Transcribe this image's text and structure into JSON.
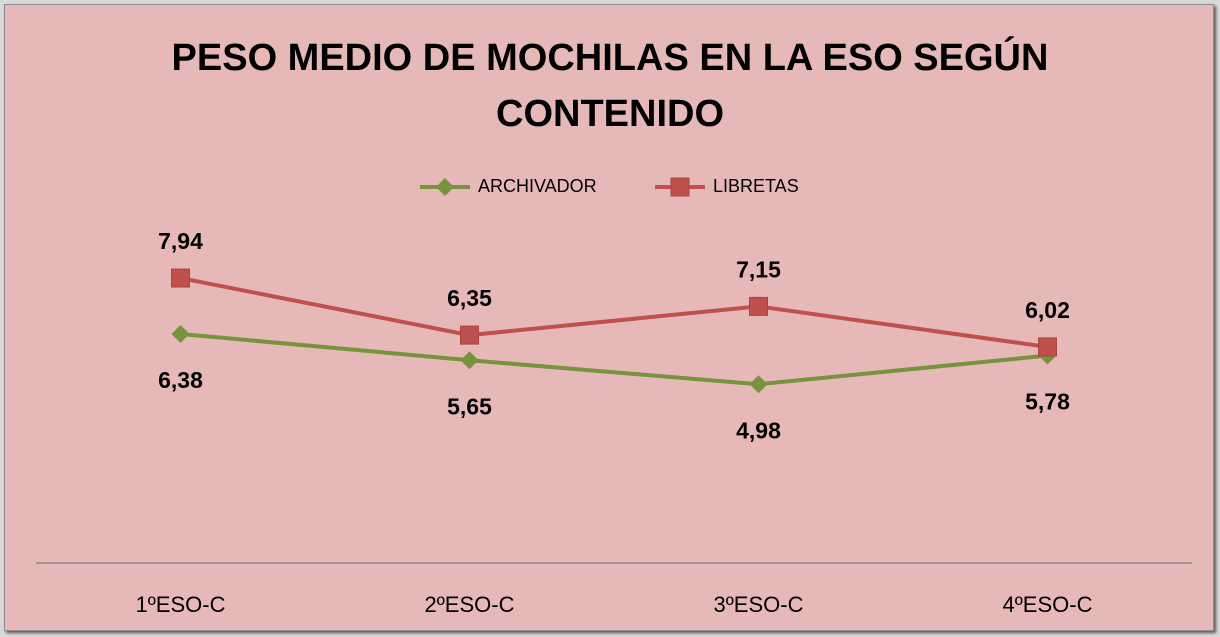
{
  "chart_data": {
    "type": "line",
    "title": "PESO MEDIO DE MOCHILAS EN LA ESO SEGÚN CONTENIDO",
    "categories": [
      "1ºESO-C",
      "2ºESO-C",
      "3ºESO-C",
      "4ºESO-C"
    ],
    "series": [
      {
        "name": "ARCHIVADOR",
        "color": "#77933c",
        "marker": "diamond",
        "values": [
          6.38,
          5.65,
          4.98,
          5.78
        ],
        "value_labels": [
          "6,38",
          "5,65",
          "4,98",
          "5,78"
        ]
      },
      {
        "name": "LIBRETAS",
        "color": "#c0504d",
        "marker": "square",
        "values": [
          7.94,
          6.35,
          7.15,
          6.02
        ],
        "value_labels": [
          "7,94",
          "6,35",
          "7,15",
          "6,02"
        ]
      }
    ],
    "ylim": [
      0,
      9
    ],
    "legend": "top"
  }
}
